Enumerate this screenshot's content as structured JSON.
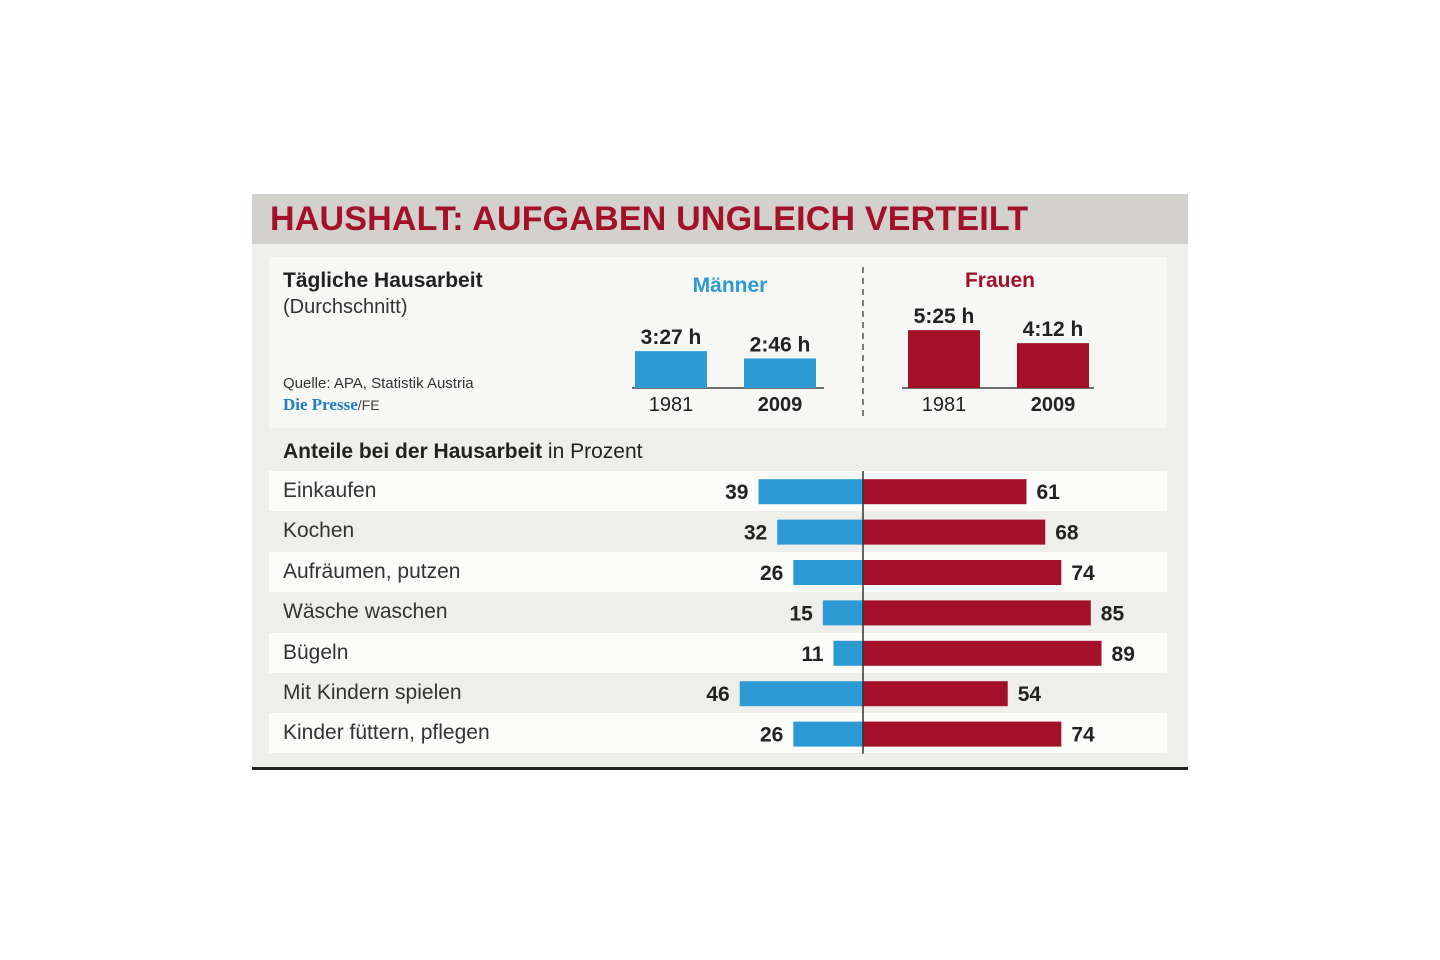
{
  "title": "HAUSHALT: AUFGABEN UNGLEICH VERTEILT",
  "colors": {
    "men": "#2e9ad4",
    "women": "#a3102a",
    "title": "#a3102a"
  },
  "daily": {
    "heading": "Tägliche Hausarbeit",
    "subheading": "(Durchschnitt)",
    "source": "Quelle: APA, Statistik Austria",
    "brand": "Die Presse",
    "brand_suffix": "/FE"
  },
  "chart_data": [
    {
      "type": "bar",
      "title": "Tägliche Hausarbeit",
      "categories": [
        "1981",
        "2009"
      ],
      "series": [
        {
          "name": "Männer",
          "values": [
            207,
            166
          ],
          "labels": [
            "3:27 h",
            "2:46 h"
          ]
        },
        {
          "name": "Frauen",
          "values": [
            325,
            252
          ],
          "labels": [
            "5:25 h",
            "4:12 h"
          ]
        }
      ],
      "unit": "min"
    },
    {
      "type": "bar",
      "title": "Anteile bei der Hausarbeit",
      "title_bold": "Anteile bei der Hausarbeit",
      "title_rest": "in Prozent",
      "categories": [
        "Einkaufen",
        "Kochen",
        "Aufräumen, putzen",
        "Wäsche waschen",
        "Bügeln",
        "Mit Kindern spielen",
        "Kinder füttern, pflegen"
      ],
      "series": [
        {
          "name": "Männer",
          "values": [
            39,
            32,
            26,
            15,
            11,
            46,
            26
          ]
        },
        {
          "name": "Frauen",
          "values": [
            61,
            68,
            74,
            85,
            89,
            54,
            74
          ]
        }
      ]
    }
  ]
}
